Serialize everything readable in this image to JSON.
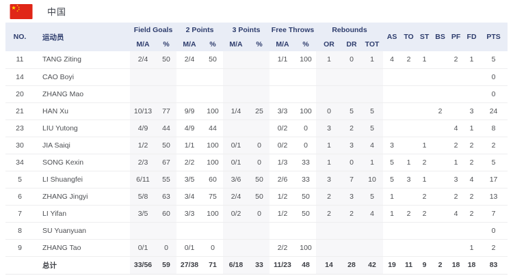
{
  "header": {
    "flag_icon": "china-flag",
    "team_name": "中国",
    "flag_red": "#e02617",
    "flag_yellow": "#ffde00"
  },
  "table": {
    "accent_header_bg": "#e9edf6",
    "accent_header_text": "#2e3d6d",
    "no_label": "NO.",
    "player_label": "运动员",
    "col_groups": [
      {
        "label": "Field Goals",
        "cols": [
          "M/A",
          "%"
        ]
      },
      {
        "label": "2 Points",
        "cols": [
          "M/A",
          "%"
        ]
      },
      {
        "label": "3 Points",
        "cols": [
          "M/A",
          "%"
        ]
      },
      {
        "label": "Free Throws",
        "cols": [
          "M/A",
          "%"
        ]
      },
      {
        "label": "Rebounds",
        "cols": [
          "OR",
          "DR",
          "TOT"
        ]
      }
    ],
    "stat_cols": [
      "AS",
      "TO",
      "ST",
      "BS",
      "PF",
      "FD",
      "PTS"
    ],
    "rows": [
      {
        "no": "11",
        "player": "TANG Ziting",
        "fg_ma": "2/4",
        "fg_pct": "50",
        "p2_ma": "2/4",
        "p2_pct": "50",
        "p3_ma": "",
        "p3_pct": "",
        "ft_ma": "1/1",
        "ft_pct": "100",
        "or": "1",
        "dr": "0",
        "tot": "1",
        "as": "4",
        "to": "2",
        "st": "1",
        "bs": "",
        "pf": "2",
        "fd": "1",
        "pts": "5"
      },
      {
        "no": "14",
        "player": "CAO Boyi",
        "fg_ma": "",
        "fg_pct": "",
        "p2_ma": "",
        "p2_pct": "",
        "p3_ma": "",
        "p3_pct": "",
        "ft_ma": "",
        "ft_pct": "",
        "or": "",
        "dr": "",
        "tot": "",
        "as": "",
        "to": "",
        "st": "",
        "bs": "",
        "pf": "",
        "fd": "",
        "pts": "0"
      },
      {
        "no": "20",
        "player": "ZHANG Mao",
        "fg_ma": "",
        "fg_pct": "",
        "p2_ma": "",
        "p2_pct": "",
        "p3_ma": "",
        "p3_pct": "",
        "ft_ma": "",
        "ft_pct": "",
        "or": "",
        "dr": "",
        "tot": "",
        "as": "",
        "to": "",
        "st": "",
        "bs": "",
        "pf": "",
        "fd": "",
        "pts": "0"
      },
      {
        "no": "21",
        "player": "HAN Xu",
        "fg_ma": "10/13",
        "fg_pct": "77",
        "p2_ma": "9/9",
        "p2_pct": "100",
        "p3_ma": "1/4",
        "p3_pct": "25",
        "ft_ma": "3/3",
        "ft_pct": "100",
        "or": "0",
        "dr": "5",
        "tot": "5",
        "as": "",
        "to": "",
        "st": "",
        "bs": "2",
        "pf": "",
        "fd": "3",
        "pts": "24"
      },
      {
        "no": "23",
        "player": "LIU Yutong",
        "fg_ma": "4/9",
        "fg_pct": "44",
        "p2_ma": "4/9",
        "p2_pct": "44",
        "p3_ma": "",
        "p3_pct": "",
        "ft_ma": "0/2",
        "ft_pct": "0",
        "or": "3",
        "dr": "2",
        "tot": "5",
        "as": "",
        "to": "",
        "st": "",
        "bs": "",
        "pf": "4",
        "fd": "1",
        "pts": "8"
      },
      {
        "no": "30",
        "player": "JIA Saiqi",
        "fg_ma": "1/2",
        "fg_pct": "50",
        "p2_ma": "1/1",
        "p2_pct": "100",
        "p3_ma": "0/1",
        "p3_pct": "0",
        "ft_ma": "0/2",
        "ft_pct": "0",
        "or": "1",
        "dr": "3",
        "tot": "4",
        "as": "3",
        "to": "",
        "st": "1",
        "bs": "",
        "pf": "2",
        "fd": "2",
        "pts": "2"
      },
      {
        "no": "34",
        "player": "SONG Kexin",
        "fg_ma": "2/3",
        "fg_pct": "67",
        "p2_ma": "2/2",
        "p2_pct": "100",
        "p3_ma": "0/1",
        "p3_pct": "0",
        "ft_ma": "1/3",
        "ft_pct": "33",
        "or": "1",
        "dr": "0",
        "tot": "1",
        "as": "5",
        "to": "1",
        "st": "2",
        "bs": "",
        "pf": "1",
        "fd": "2",
        "pts": "5"
      },
      {
        "no": "5",
        "player": "LI Shuangfei",
        "fg_ma": "6/11",
        "fg_pct": "55",
        "p2_ma": "3/5",
        "p2_pct": "60",
        "p3_ma": "3/6",
        "p3_pct": "50",
        "ft_ma": "2/6",
        "ft_pct": "33",
        "or": "3",
        "dr": "7",
        "tot": "10",
        "as": "5",
        "to": "3",
        "st": "1",
        "bs": "",
        "pf": "3",
        "fd": "4",
        "pts": "17"
      },
      {
        "no": "6",
        "player": "ZHANG Jingyi",
        "fg_ma": "5/8",
        "fg_pct": "63",
        "p2_ma": "3/4",
        "p2_pct": "75",
        "p3_ma": "2/4",
        "p3_pct": "50",
        "ft_ma": "1/2",
        "ft_pct": "50",
        "or": "2",
        "dr": "3",
        "tot": "5",
        "as": "1",
        "to": "",
        "st": "2",
        "bs": "",
        "pf": "2",
        "fd": "2",
        "pts": "13"
      },
      {
        "no": "7",
        "player": "LI Yifan",
        "fg_ma": "3/5",
        "fg_pct": "60",
        "p2_ma": "3/3",
        "p2_pct": "100",
        "p3_ma": "0/2",
        "p3_pct": "0",
        "ft_ma": "1/2",
        "ft_pct": "50",
        "or": "2",
        "dr": "2",
        "tot": "4",
        "as": "1",
        "to": "2",
        "st": "2",
        "bs": "",
        "pf": "4",
        "fd": "2",
        "pts": "7"
      },
      {
        "no": "8",
        "player": "SU Yuanyuan",
        "fg_ma": "",
        "fg_pct": "",
        "p2_ma": "",
        "p2_pct": "",
        "p3_ma": "",
        "p3_pct": "",
        "ft_ma": "",
        "ft_pct": "",
        "or": "",
        "dr": "",
        "tot": "",
        "as": "",
        "to": "",
        "st": "",
        "bs": "",
        "pf": "",
        "fd": "",
        "pts": "0"
      },
      {
        "no": "9",
        "player": "ZHANG Tao",
        "fg_ma": "0/1",
        "fg_pct": "0",
        "p2_ma": "0/1",
        "p2_pct": "0",
        "p3_ma": "",
        "p3_pct": "",
        "ft_ma": "2/2",
        "ft_pct": "100",
        "or": "",
        "dr": "",
        "tot": "",
        "as": "",
        "to": "",
        "st": "",
        "bs": "",
        "pf": "",
        "fd": "1",
        "pts": "2"
      }
    ],
    "totals": {
      "no": "",
      "player": "总计",
      "fg_ma": "33/56",
      "fg_pct": "59",
      "p2_ma": "27/38",
      "p2_pct": "71",
      "p3_ma": "6/18",
      "p3_pct": "33",
      "ft_ma": "11/23",
      "ft_pct": "48",
      "or": "14",
      "dr": "28",
      "tot": "42",
      "as": "19",
      "to": "11",
      "st": "9",
      "bs": "2",
      "pf": "18",
      "fd": "18",
      "pts": "83"
    }
  }
}
